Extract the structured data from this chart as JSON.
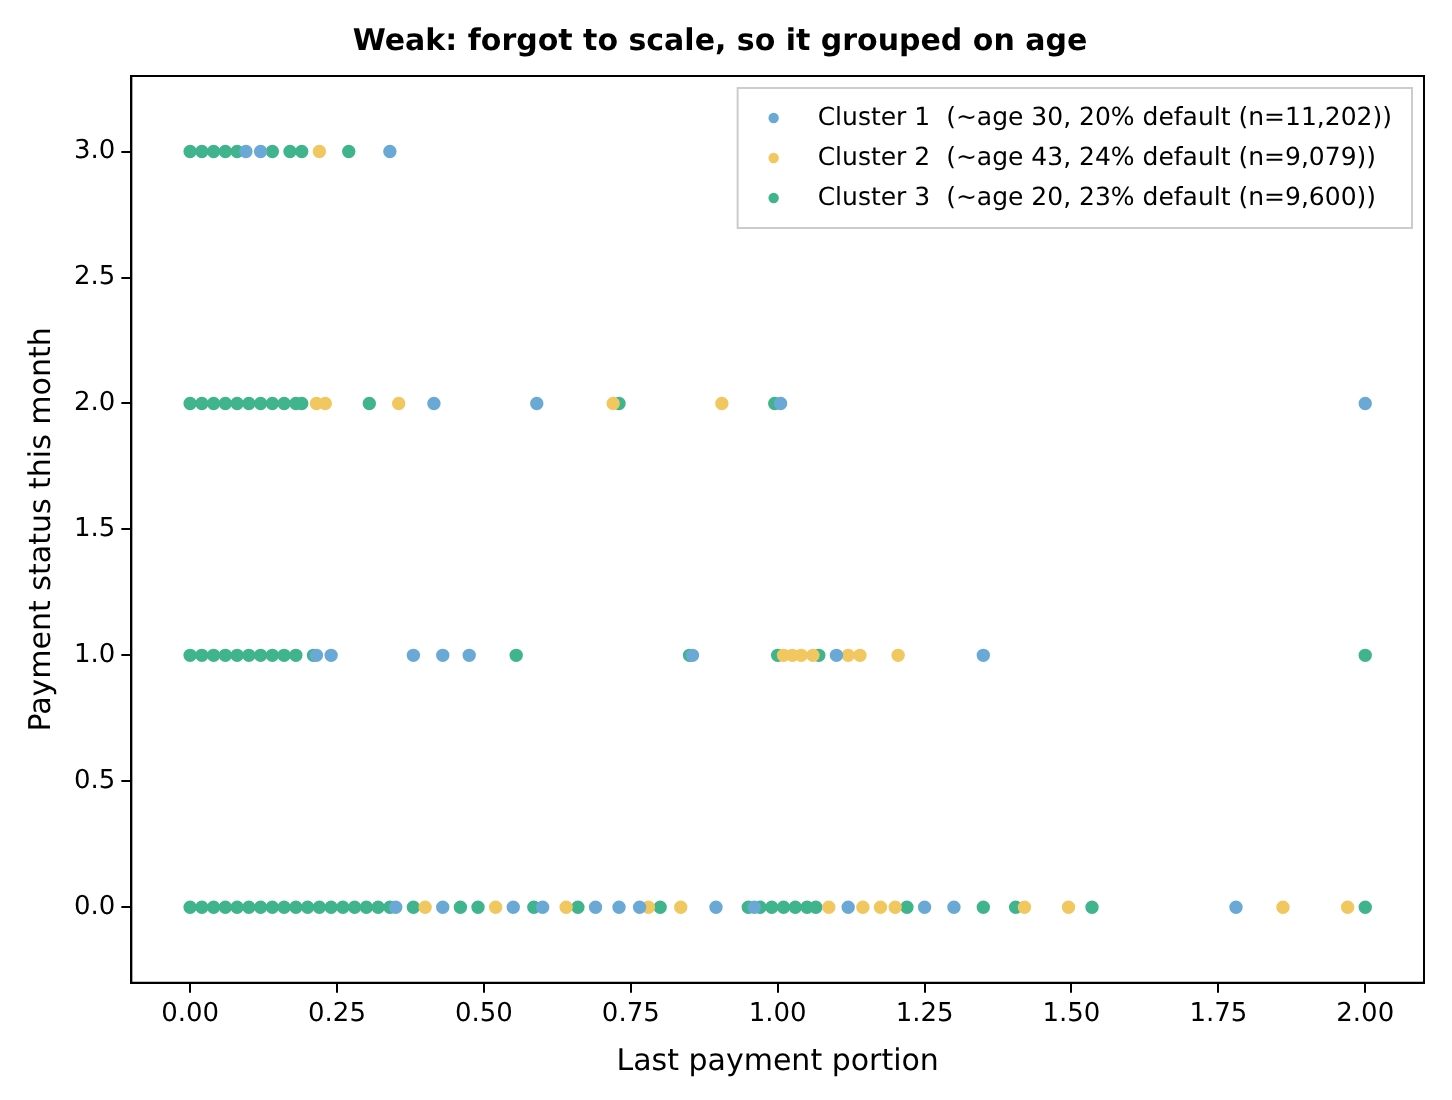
{
  "chart_data": {
    "type": "scatter",
    "title": "Weak: forgot to scale, so it grouped on age",
    "xlabel": "Last payment portion",
    "ylabel": "Payment status this month",
    "xlim": [
      -0.1,
      2.1
    ],
    "ylim": [
      -0.3,
      3.3
    ],
    "xticks": [
      {
        "value": 0,
        "label": "0.00"
      },
      {
        "value": 0.25,
        "label": "0.25"
      },
      {
        "value": 0.5,
        "label": "0.50"
      },
      {
        "value": 0.75,
        "label": "0.75"
      },
      {
        "value": 1,
        "label": "1.00"
      },
      {
        "value": 1.25,
        "label": "1.25"
      },
      {
        "value": 1.5,
        "label": "1.50"
      },
      {
        "value": 1.75,
        "label": "1.75"
      },
      {
        "value": 2,
        "label": "2.00"
      }
    ],
    "yticks": [
      {
        "value": 0,
        "label": "0.0"
      },
      {
        "value": 0.5,
        "label": "0.5"
      },
      {
        "value": 1,
        "label": "1.0"
      },
      {
        "value": 1.5,
        "label": "1.5"
      },
      {
        "value": 2,
        "label": "2.0"
      },
      {
        "value": 2.5,
        "label": "2.5"
      },
      {
        "value": 3,
        "label": "3.0"
      }
    ],
    "grid": false,
    "legend": "top right",
    "marker": "circle",
    "series": [
      {
        "name": "Cluster 1  (~age 30, 20% default (n=11,202))",
        "color": "#6aa9d6",
        "x": [
          0.095,
          0.12,
          0.34,
          0.415,
          0.59,
          1.005,
          2.0,
          0.215,
          0.24,
          0.38,
          0.43,
          0.475,
          0.855,
          1.1,
          1.35,
          0.35,
          0.43,
          0.55,
          0.6,
          0.69,
          0.73,
          0.765,
          0.895,
          0.96,
          1.12,
          1.25,
          1.3,
          1.78
        ],
        "values": [
          3,
          3,
          3,
          2,
          2,
          2,
          2,
          1,
          1,
          1,
          1,
          1,
          1,
          1,
          1,
          0,
          0,
          0,
          0,
          0,
          0,
          0,
          0,
          0,
          0,
          0,
          0,
          0
        ]
      },
      {
        "name": "Cluster 2  (~age 43, 24% default (n=9,079))",
        "color": "#f1c75f",
        "x": [
          0.22,
          0.215,
          0.23,
          0.355,
          0.72,
          0.905,
          1.01,
          1.025,
          1.04,
          1.06,
          1.12,
          1.14,
          1.205,
          0.4,
          0.52,
          0.64,
          0.78,
          0.835,
          1.087,
          1.145,
          1.175,
          1.2,
          1.42,
          1.495,
          1.86,
          1.97
        ],
        "values": [
          3,
          2,
          2,
          2,
          2,
          2,
          1,
          1,
          1,
          1,
          1,
          1,
          1,
          0,
          0,
          0,
          0,
          0,
          0,
          0,
          0,
          0,
          0,
          0,
          0,
          0
        ]
      },
      {
        "name": "Cluster 3  (~age 20, 23% default (n=9,600))",
        "color": "#3fb48d",
        "x": [
          0,
          0.02,
          0.04,
          0.06,
          0.08,
          0.14,
          0.17,
          0.19,
          0.27,
          0,
          0.02,
          0.04,
          0.06,
          0.08,
          0.1,
          0.12,
          0.14,
          0.16,
          0.18,
          0.19,
          0.305,
          0.73,
          0.995,
          0,
          0.02,
          0.04,
          0.06,
          0.08,
          0.1,
          0.12,
          0.14,
          0.16,
          0.18,
          0.21,
          0.555,
          0.85,
          1.0,
          1.07,
          2.0,
          0,
          0.02,
          0.04,
          0.06,
          0.08,
          0.1,
          0.12,
          0.14,
          0.16,
          0.18,
          0.2,
          0.22,
          0.24,
          0.26,
          0.28,
          0.3,
          0.32,
          0.34,
          0.38,
          0.46,
          0.49,
          0.585,
          0.66,
          0.8,
          0.95,
          0.97,
          0.99,
          1.01,
          1.03,
          1.05,
          1.065,
          1.22,
          1.35,
          1.405,
          1.535,
          2.0
        ],
        "values": [
          3,
          3,
          3,
          3,
          3,
          3,
          3,
          3,
          3,
          2,
          2,
          2,
          2,
          2,
          2,
          2,
          2,
          2,
          2,
          2,
          2,
          2,
          2,
          1,
          1,
          1,
          1,
          1,
          1,
          1,
          1,
          1,
          1,
          1,
          1,
          1,
          1,
          1,
          1,
          0,
          0,
          0,
          0,
          0,
          0,
          0,
          0,
          0,
          0,
          0,
          0,
          0,
          0,
          0,
          0,
          0,
          0,
          0,
          0,
          0,
          0,
          0,
          0,
          0,
          0,
          0,
          0,
          0,
          0,
          0,
          0,
          0,
          0,
          0,
          0
        ]
      }
    ]
  }
}
